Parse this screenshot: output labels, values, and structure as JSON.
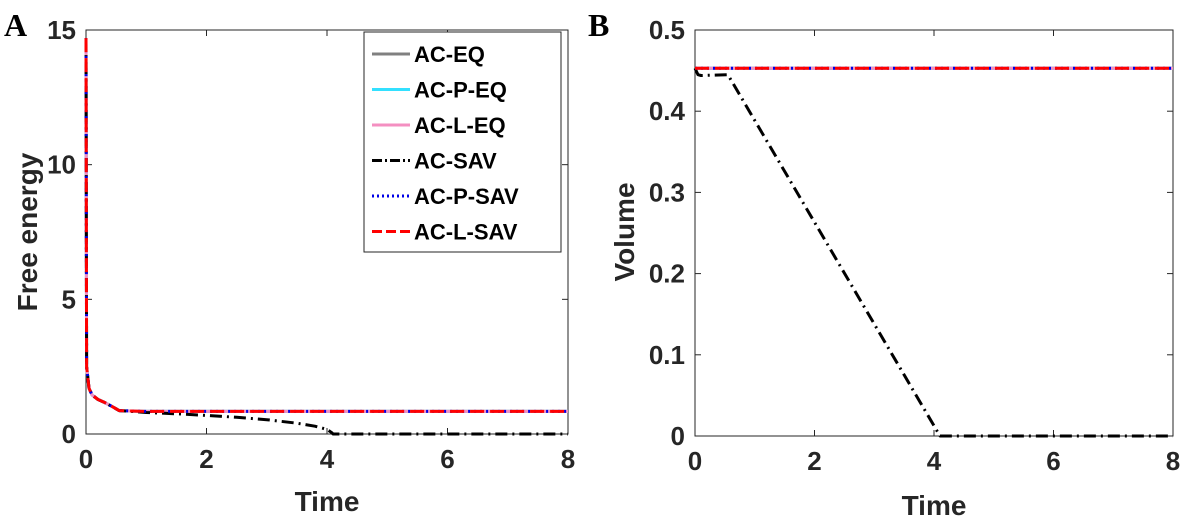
{
  "chart_data": [
    {
      "panel": "A",
      "type": "line",
      "xlabel": "Time",
      "ylabel": "Free energy",
      "xlim": [
        0,
        8
      ],
      "ylim": [
        0,
        15
      ],
      "xticks": [
        "0",
        "2",
        "4",
        "6",
        "8"
      ],
      "yticks": [
        "0",
        "5",
        "10",
        "15"
      ],
      "legend_position": "top-right",
      "series": [
        {
          "name": "AC-EQ",
          "color": "#808080",
          "dash": "solid",
          "x": [
            0,
            0.01,
            0.05,
            0.1,
            0.2,
            0.3,
            0.45,
            0.55,
            0.8,
            1.0,
            1.5,
            2.0,
            3.0,
            4.0,
            5.0,
            6.0,
            7.0,
            8.0
          ],
          "y": [
            14.7,
            2.5,
            1.7,
            1.45,
            1.28,
            1.18,
            1.0,
            0.87,
            0.85,
            0.84,
            0.84,
            0.84,
            0.84,
            0.84,
            0.84,
            0.84,
            0.84,
            0.84
          ]
        },
        {
          "name": "AC-P-EQ",
          "color": "#33e0ff",
          "dash": "solid",
          "x": [
            0,
            0.01,
            0.05,
            0.1,
            0.2,
            0.3,
            0.45,
            0.55,
            0.8,
            1.0,
            1.5,
            2.0,
            3.0,
            4.0,
            5.0,
            6.0,
            7.0,
            8.0
          ],
          "y": [
            14.7,
            2.5,
            1.7,
            1.45,
            1.28,
            1.18,
            1.0,
            0.87,
            0.85,
            0.84,
            0.84,
            0.84,
            0.84,
            0.84,
            0.84,
            0.84,
            0.84,
            0.84
          ]
        },
        {
          "name": "AC-L-EQ",
          "color": "#f48fc1",
          "dash": "solid",
          "x": [
            0,
            0.01,
            0.05,
            0.1,
            0.2,
            0.3,
            0.45,
            0.55,
            0.8,
            1.0,
            1.5,
            2.0,
            3.0,
            4.0,
            5.0,
            6.0,
            7.0,
            8.0
          ],
          "y": [
            14.7,
            2.5,
            1.7,
            1.45,
            1.28,
            1.18,
            1.0,
            0.87,
            0.85,
            0.84,
            0.84,
            0.84,
            0.84,
            0.84,
            0.84,
            0.84,
            0.84,
            0.84
          ]
        },
        {
          "name": "AC-SAV",
          "color": "#000000",
          "dash": "dashdot",
          "x": [
            0,
            0.01,
            0.05,
            0.1,
            0.2,
            0.3,
            0.45,
            0.55,
            0.8,
            1.0,
            1.5,
            2.0,
            2.5,
            3.0,
            3.5,
            3.8,
            4.0,
            4.08,
            4.1,
            5.0,
            6.0,
            7.0,
            8.0
          ],
          "y": [
            14.7,
            2.5,
            1.7,
            1.45,
            1.28,
            1.18,
            1.0,
            0.87,
            0.83,
            0.8,
            0.75,
            0.69,
            0.62,
            0.53,
            0.4,
            0.29,
            0.17,
            0.05,
            0.0,
            0.0,
            0.0,
            0.0,
            0.0
          ]
        },
        {
          "name": "AC-P-SAV",
          "color": "#0000e6",
          "dash": "dotted",
          "x": [
            0,
            0.01,
            0.05,
            0.1,
            0.2,
            0.3,
            0.45,
            0.55,
            0.8,
            1.0,
            1.5,
            2.0,
            3.0,
            4.0,
            5.0,
            6.0,
            7.0,
            8.0
          ],
          "y": [
            14.7,
            2.5,
            1.7,
            1.45,
            1.28,
            1.18,
            1.0,
            0.87,
            0.85,
            0.84,
            0.84,
            0.84,
            0.84,
            0.84,
            0.84,
            0.84,
            0.84,
            0.84
          ]
        },
        {
          "name": "AC-L-SAV",
          "color": "#ff0000",
          "dash": "dashed",
          "x": [
            0,
            0.01,
            0.05,
            0.1,
            0.2,
            0.3,
            0.45,
            0.55,
            0.8,
            1.0,
            1.5,
            2.0,
            3.0,
            4.0,
            5.0,
            6.0,
            7.0,
            8.0
          ],
          "y": [
            14.7,
            2.5,
            1.7,
            1.45,
            1.28,
            1.18,
            1.0,
            0.87,
            0.85,
            0.84,
            0.84,
            0.84,
            0.84,
            0.84,
            0.84,
            0.84,
            0.84,
            0.84
          ]
        }
      ]
    },
    {
      "panel": "B",
      "type": "line",
      "xlabel": "Time",
      "ylabel": "Volume",
      "xlim": [
        0,
        8
      ],
      "ylim": [
        0,
        0.5
      ],
      "xticks": [
        "0",
        "2",
        "4",
        "6",
        "8"
      ],
      "yticks": [
        "0",
        "0.1",
        "0.2",
        "0.3",
        "0.4",
        "0.5"
      ],
      "series": [
        {
          "name": "AC-EQ",
          "color": "#808080",
          "dash": "solid",
          "x": [
            0,
            8
          ],
          "y": [
            0.453,
            0.453
          ]
        },
        {
          "name": "AC-P-EQ",
          "color": "#33e0ff",
          "dash": "solid",
          "x": [
            0,
            8
          ],
          "y": [
            0.453,
            0.453
          ]
        },
        {
          "name": "AC-L-EQ",
          "color": "#f48fc1",
          "dash": "solid",
          "x": [
            0,
            8
          ],
          "y": [
            0.453,
            0.453
          ]
        },
        {
          "name": "AC-SAV",
          "color": "#000000",
          "dash": "dashdot",
          "x": [
            0,
            0.05,
            0.1,
            0.55,
            4.1,
            5.0,
            6.0,
            7.0,
            8.0
          ],
          "y": [
            0.453,
            0.445,
            0.444,
            0.445,
            0.0,
            0.0,
            0.0,
            0.0,
            0.0
          ]
        },
        {
          "name": "AC-P-SAV",
          "color": "#0000e6",
          "dash": "dotted",
          "x": [
            0,
            8
          ],
          "y": [
            0.453,
            0.453
          ]
        },
        {
          "name": "AC-L-SAV",
          "color": "#ff0000",
          "dash": "dashed",
          "x": [
            0,
            8
          ],
          "y": [
            0.453,
            0.453
          ]
        }
      ]
    }
  ]
}
